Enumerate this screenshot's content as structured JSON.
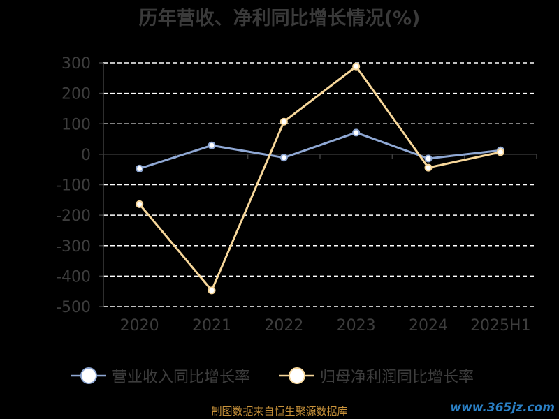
{
  "title": "历年营收、净利同比增长情况(%)",
  "source": "制图数据来自恒生聚源数据库",
  "watermark": "www.365jz.com",
  "colors": {
    "revenue": "#8fa8d4",
    "profit": "#f7d79a",
    "grid": "#ffffff",
    "axis_text": "#3d3d3d"
  },
  "chart_data": {
    "type": "line",
    "categories": [
      "2020",
      "2021",
      "2022",
      "2023",
      "2024",
      "2025H1"
    ],
    "ylim": [
      -500,
      300
    ],
    "yticks": [
      300,
      200,
      100,
      0,
      -100,
      -200,
      -300,
      -400,
      -500
    ],
    "series": [
      {
        "name": "营业收入同比增长率",
        "values": [
          -47,
          29,
          -11,
          71,
          -14,
          13
        ]
      },
      {
        "name": "归母净利润同比增长率",
        "values": [
          -164,
          -447,
          107,
          288,
          -44,
          7
        ]
      }
    ],
    "legend": "bottom"
  }
}
